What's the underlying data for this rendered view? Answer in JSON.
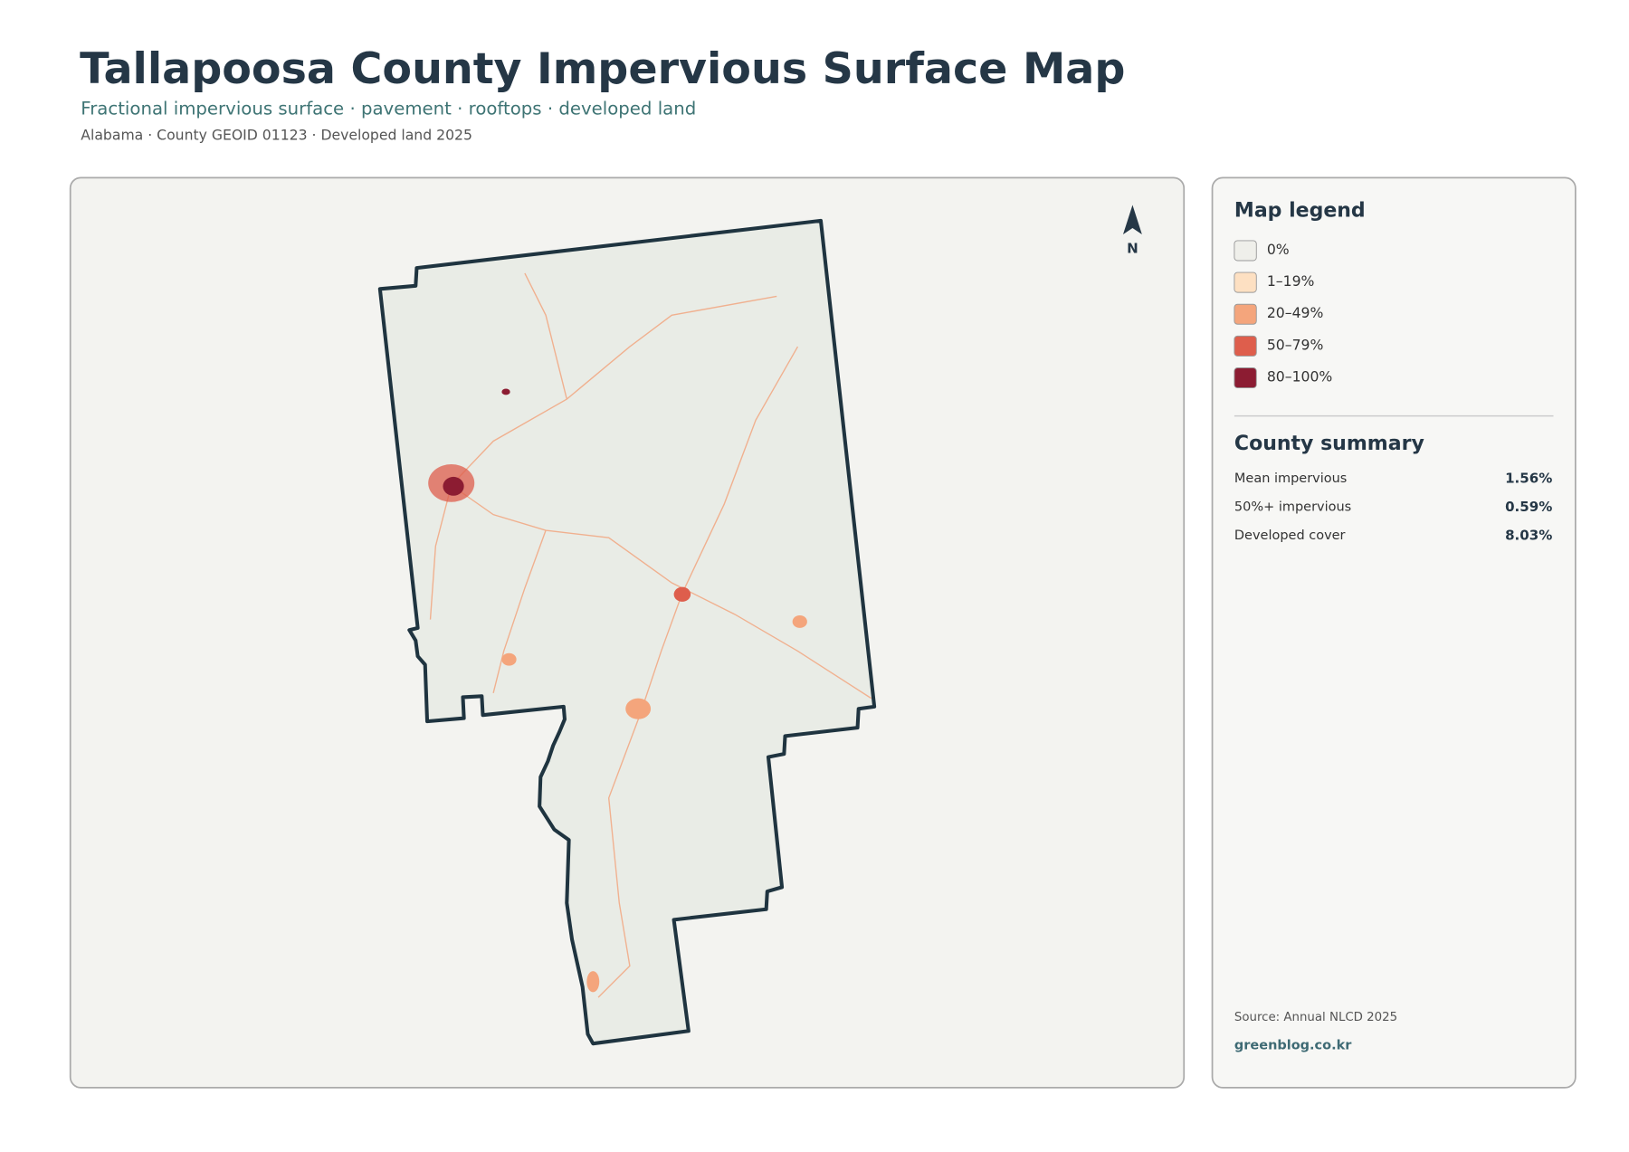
{
  "header": {
    "title": "Tallapoosa County Impervious Surface Map",
    "subtitle": "Fractional impervious surface · pavement · rooftops · developed land",
    "meta": "Alabama · County GEOID 01123 · Developed land 2025"
  },
  "map": {
    "north_label": "N"
  },
  "legend": {
    "title": "Map legend",
    "items": [
      {
        "label": "0%",
        "color": "#efefea"
      },
      {
        "label": "1–19%",
        "color": "#fde0c2"
      },
      {
        "label": "20–49%",
        "color": "#f4a57c"
      },
      {
        "label": "50–79%",
        "color": "#de5e4c"
      },
      {
        "label": "80–100%",
        "color": "#8c1c32"
      }
    ]
  },
  "summary": {
    "title": "County summary",
    "rows": [
      [
        "Mean impervious",
        "1.56%"
      ],
      [
        "50%+ impervious",
        "0.59%"
      ],
      [
        "Developed cover",
        "8.03%"
      ]
    ]
  },
  "footer": {
    "source": "Source: Annual NLCD 2025",
    "website": "greenblog.co.kr"
  }
}
